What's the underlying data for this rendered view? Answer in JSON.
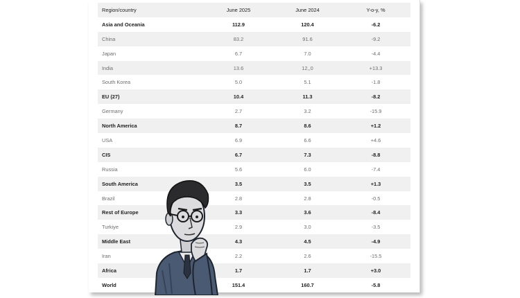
{
  "table": {
    "headers": [
      "Region/country",
      "June 2025",
      "June 2024",
      "Y-o-y, %"
    ],
    "rows": [
      {
        "cells": [
          "Asia and Oceania",
          "112.9",
          "120.4",
          "-6.2"
        ],
        "bold": true
      },
      {
        "cells": [
          "China",
          "83.2",
          "91.6",
          "-9.2"
        ],
        "bold": false
      },
      {
        "cells": [
          "Japan",
          "6.7",
          "7.0",
          "-4.4"
        ],
        "bold": false
      },
      {
        "cells": [
          "India",
          "13.6",
          "12,,0",
          "+13.3"
        ],
        "bold": false
      },
      {
        "cells": [
          "South Korea",
          "5.0",
          "5.1",
          "-1.8"
        ],
        "bold": false
      },
      {
        "cells": [
          "EU (27)",
          "10.4",
          "11.3",
          "-8.2"
        ],
        "bold": true
      },
      {
        "cells": [
          "Germany",
          "2.7",
          "3.2",
          "-15.9"
        ],
        "bold": false
      },
      {
        "cells": [
          "North America",
          "8.7",
          "8.6",
          "+1.2"
        ],
        "bold": true
      },
      {
        "cells": [
          "USA",
          "6.9",
          "6.6",
          "+4.6"
        ],
        "bold": false
      },
      {
        "cells": [
          "CIS",
          "6.7",
          "7.3",
          "-8.8"
        ],
        "bold": true
      },
      {
        "cells": [
          "Russia",
          "5.6",
          "6.0",
          "-7.4"
        ],
        "bold": false
      },
      {
        "cells": [
          "South America",
          "3.5",
          "3.5",
          "+1.3"
        ],
        "bold": true
      },
      {
        "cells": [
          "Brazil",
          "2.8",
          "2.8",
          "-0.5"
        ],
        "bold": false
      },
      {
        "cells": [
          "Rest of Europe",
          "3.3",
          "3.6",
          "-8.4"
        ],
        "bold": true
      },
      {
        "cells": [
          "Turkiye",
          "2.9",
          "3.0",
          "-3.5"
        ],
        "bold": false
      },
      {
        "cells": [
          "Middle East",
          "4.3",
          "4.5",
          "-4.9"
        ],
        "bold": true
      },
      {
        "cells": [
          "Iran",
          "2.2",
          "2.6",
          "-15.5"
        ],
        "bold": false
      },
      {
        "cells": [
          "Africa",
          "1.7",
          "1.7",
          "+3.0"
        ],
        "bold": true
      },
      {
        "cells": [
          "World",
          "151.4",
          "160.7",
          "-5.8"
        ],
        "bold": true
      }
    ]
  },
  "illustration": {
    "icon": "thinking-man-cartoon"
  },
  "colors": {
    "stripe": "#f0f0f0",
    "text_dark": "#222222",
    "text_light": "#6d6d6d"
  }
}
